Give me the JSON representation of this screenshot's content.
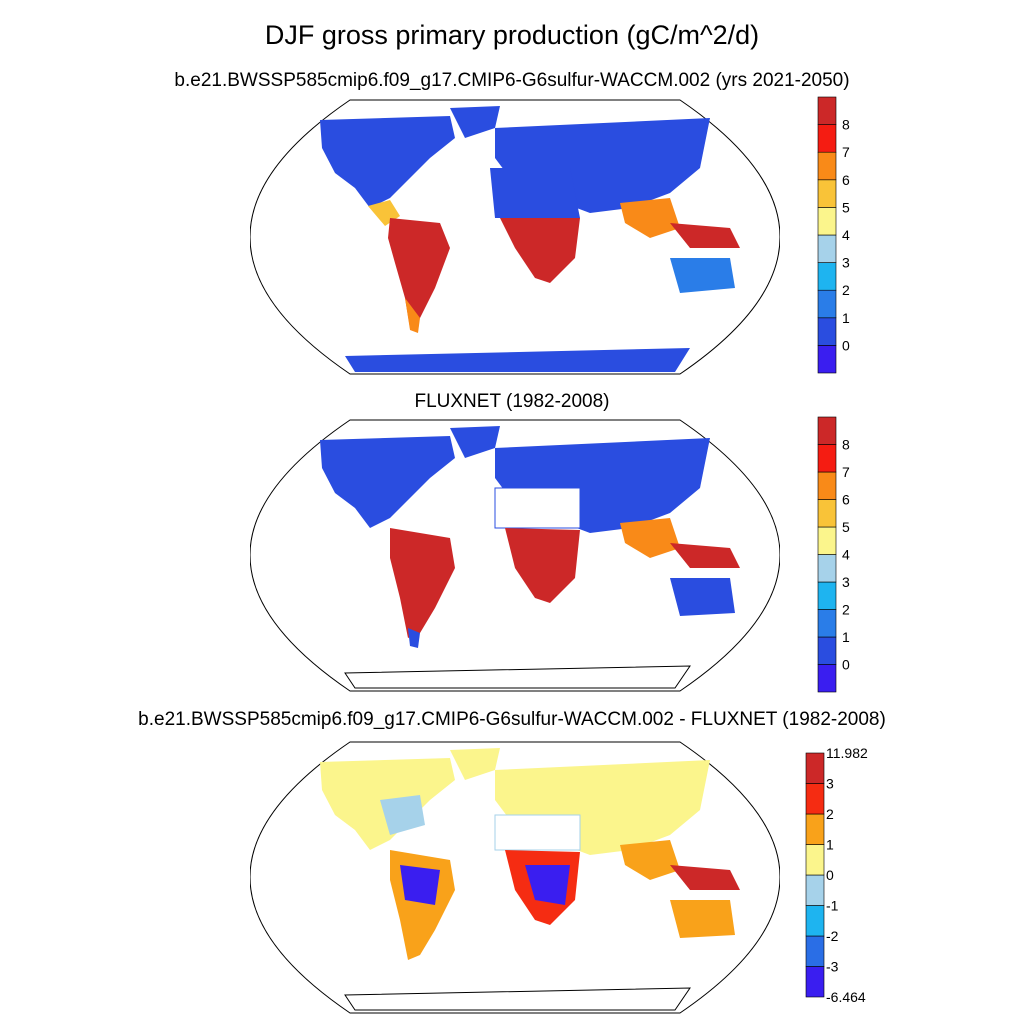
{
  "title": "DJF gross primary production (gC/m^2/d)",
  "panels": [
    {
      "id": "model",
      "subtitle": "b.e21.BWSSP585cmip6.f09_g17.CMIP6-G6sulfur-WACCM.002 (yrs 2021-2050)",
      "colorbar": {
        "colors": [
          "#3a1ef0",
          "#2a4de0",
          "#2a7de8",
          "#1eb4f0",
          "#a6d2ea",
          "#fbf58c",
          "#f9c338",
          "#f98a18",
          "#f51c12",
          "#cc2828"
        ],
        "labels": [
          "0",
          "1",
          "2",
          "3",
          "4",
          "5",
          "6",
          "7",
          "8"
        ]
      }
    },
    {
      "id": "fluxnet",
      "subtitle": "FLUXNET (1982-2008)",
      "colorbar": {
        "colors": [
          "#3a1ef0",
          "#2a4de0",
          "#2a7de8",
          "#1eb4f0",
          "#a6d2ea",
          "#fbf58c",
          "#f9c338",
          "#f98a18",
          "#f51c12",
          "#cc2828"
        ],
        "labels": [
          "0",
          "1",
          "2",
          "3",
          "4",
          "5",
          "6",
          "7",
          "8"
        ]
      }
    },
    {
      "id": "difference",
      "subtitle": "b.e21.BWSSP585cmip6.f09_g17.CMIP6-G6sulfur-WACCM.002 - FLUXNET (1982-2008)",
      "colorbar": {
        "colors": [
          "#3a1ef0",
          "#2a6ee6",
          "#1eb4f0",
          "#a6d2ea",
          "#fbf58c",
          "#f9a21a",
          "#f52c12",
          "#cc2828"
        ],
        "labels": [
          "-6.464",
          "-3",
          "-2",
          "-1",
          "0",
          "1",
          "2",
          "3",
          "11.982"
        ]
      }
    }
  ]
}
